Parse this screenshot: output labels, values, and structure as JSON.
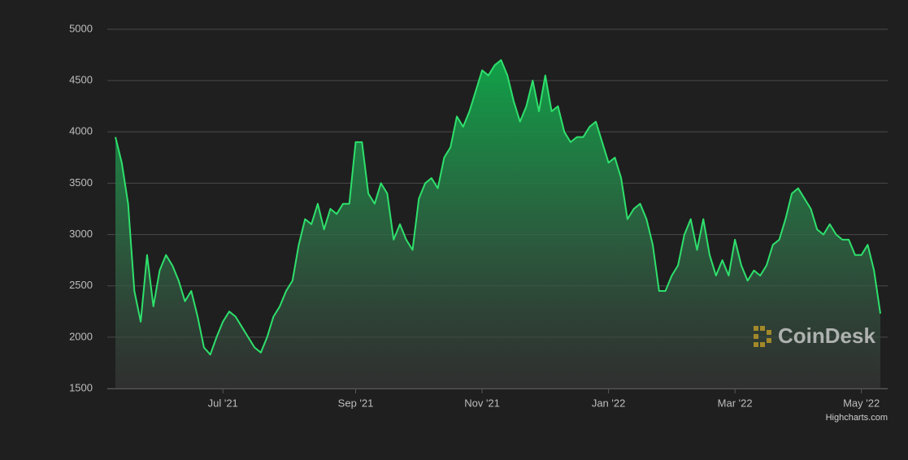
{
  "chart_data": {
    "type": "area",
    "categories": [
      null,
      null,
      null,
      null,
      null,
      null,
      null,
      null,
      null,
      null,
      null,
      null,
      null,
      null,
      null,
      null,
      null,
      "Jul '21",
      null,
      null,
      null,
      null,
      null,
      null,
      null,
      null,
      null,
      null,
      null,
      null,
      null,
      null,
      null,
      null,
      null,
      null,
      null,
      null,
      "Sep '21",
      null,
      null,
      null,
      null,
      null,
      null,
      null,
      null,
      null,
      null,
      null,
      null,
      null,
      null,
      null,
      null,
      null,
      null,
      null,
      "Nov '21",
      null,
      null,
      null,
      null,
      null,
      null,
      null,
      null,
      null,
      null,
      null,
      null,
      null,
      null,
      null,
      null,
      null,
      null,
      null,
      "Jan '22",
      null,
      null,
      null,
      null,
      null,
      null,
      null,
      null,
      null,
      null,
      null,
      null,
      null,
      null,
      null,
      null,
      null,
      null,
      null,
      "Mar '22",
      null,
      null,
      null,
      null,
      null,
      null,
      null,
      null,
      null,
      null,
      null,
      null,
      null,
      null,
      null,
      null,
      null,
      null,
      null,
      "May '22",
      null,
      null,
      null
    ],
    "values": [
      3950,
      3700,
      3300,
      2450,
      2150,
      2800,
      2300,
      2650,
      2800,
      2700,
      2550,
      2350,
      2450,
      2200,
      1900,
      1830,
      2000,
      2150,
      2250,
      2200,
      2100,
      2000,
      1900,
      1850,
      2000,
      2200,
      2300,
      2450,
      2550,
      2900,
      3150,
      3100,
      3300,
      3050,
      3250,
      3200,
      3300,
      3300,
      3900,
      3900,
      3400,
      3300,
      3500,
      3400,
      2950,
      3100,
      2950,
      2850,
      3350,
      3500,
      3550,
      3450,
      3750,
      3850,
      4150,
      4050,
      4200,
      4400,
      4600,
      4550,
      4650,
      4700,
      4550,
      4300,
      4100,
      4250,
      4500,
      4200,
      4550,
      4200,
      4250,
      4000,
      3900,
      3950,
      3950,
      4050,
      4100,
      3900,
      3700,
      3750,
      3550,
      3150,
      3250,
      3300,
      3150,
      2900,
      2450,
      2450,
      2600,
      2700,
      3000,
      3150,
      2850,
      3150,
      2800,
      2600,
      2750,
      2600,
      2950,
      2700,
      2550,
      2650,
      2600,
      2700,
      2900,
      2950,
      3150,
      3400,
      3450,
      3350,
      3250,
      3050,
      3000,
      3100,
      3000,
      2950,
      2950,
      2800,
      2800,
      2900,
      2650,
      2230
    ],
    "color": "#2ee06c",
    "ylim": [
      1500,
      5000
    ],
    "yticks": [
      1500,
      2000,
      2500,
      3000,
      3500,
      4000,
      4500,
      5000
    ],
    "grid": true,
    "watermark": "CoinDesk",
    "credits": "Highcharts.com"
  }
}
